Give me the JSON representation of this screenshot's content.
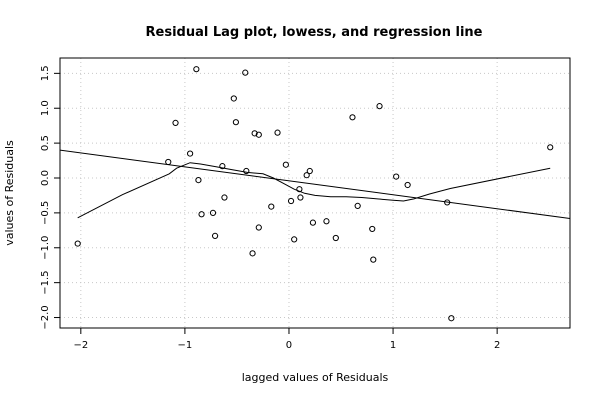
{
  "chart_data": {
    "type": "scatter",
    "title": "Residual Lag plot, lowess, and regression line",
    "xlabel": "lagged values of Residuals",
    "ylabel": "values of Residuals",
    "xlim": [
      -2.2,
      2.7
    ],
    "ylim": [
      -2.15,
      1.72
    ],
    "grid": true,
    "x_ticks": [
      -2,
      -1,
      0,
      1,
      2
    ],
    "x_tick_labels": [
      "−2",
      "−1",
      "0",
      "1",
      "2"
    ],
    "y_ticks": [
      -2.0,
      -1.5,
      -1.0,
      -0.5,
      0.0,
      0.5,
      1.0,
      1.5
    ],
    "y_tick_labels": [
      "−2.0",
      "−1.5",
      "−1.0",
      "−0.5",
      "0.0",
      "0.5",
      "1.0",
      "1.5"
    ],
    "series": [
      {
        "type": "scatter",
        "points": [
          [
            -2.03,
            -0.94
          ],
          [
            -1.16,
            0.23
          ],
          [
            -1.09,
            0.79
          ],
          [
            -0.95,
            0.35
          ],
          [
            -0.89,
            1.56
          ],
          [
            -0.87,
            -0.03
          ],
          [
            -0.84,
            -0.52
          ],
          [
            -0.73,
            -0.5
          ],
          [
            -0.71,
            -0.83
          ],
          [
            -0.64,
            0.17
          ],
          [
            -0.62,
            -0.28
          ],
          [
            -0.53,
            1.14
          ],
          [
            -0.51,
            0.8
          ],
          [
            -0.42,
            1.51
          ],
          [
            -0.41,
            0.1
          ],
          [
            -0.35,
            -1.08
          ],
          [
            -0.33,
            0.64
          ],
          [
            -0.29,
            0.62
          ],
          [
            -0.29,
            -0.71
          ],
          [
            -0.17,
            -0.41
          ],
          [
            -0.11,
            0.65
          ],
          [
            -0.03,
            0.19
          ],
          [
            0.02,
            -0.33
          ],
          [
            0.05,
            -0.88
          ],
          [
            0.1,
            -0.16
          ],
          [
            0.11,
            -0.28
          ],
          [
            0.17,
            0.04
          ],
          [
            0.2,
            0.1
          ],
          [
            0.23,
            -0.64
          ],
          [
            0.36,
            -0.62
          ],
          [
            0.45,
            -0.86
          ],
          [
            0.61,
            0.87
          ],
          [
            0.66,
            -0.4
          ],
          [
            0.8,
            -0.73
          ],
          [
            0.81,
            -1.17
          ],
          [
            0.87,
            1.03
          ],
          [
            1.03,
            0.02
          ],
          [
            1.14,
            -0.1
          ],
          [
            1.52,
            -0.35
          ],
          [
            1.56,
            -2.01
          ],
          [
            2.51,
            0.44
          ]
        ]
      },
      {
        "type": "line",
        "points": [
          [
            -2.03,
            -0.57
          ],
          [
            -1.6,
            -0.24
          ],
          [
            -1.15,
            0.06
          ],
          [
            -1.08,
            0.14
          ],
          [
            -0.95,
            0.22
          ],
          [
            -0.85,
            0.2
          ],
          [
            -0.7,
            0.16
          ],
          [
            -0.55,
            0.12
          ],
          [
            -0.4,
            0.08
          ],
          [
            -0.25,
            0.06
          ],
          [
            -0.15,
            0.0
          ],
          [
            -0.05,
            -0.08
          ],
          [
            0.05,
            -0.16
          ],
          [
            0.15,
            -0.22
          ],
          [
            0.25,
            -0.25
          ],
          [
            0.4,
            -0.27
          ],
          [
            0.55,
            -0.27
          ],
          [
            0.7,
            -0.28
          ],
          [
            0.85,
            -0.3
          ],
          [
            1.0,
            -0.32
          ],
          [
            1.1,
            -0.33
          ],
          [
            1.2,
            -0.3
          ],
          [
            1.35,
            -0.23
          ],
          [
            1.55,
            -0.15
          ],
          [
            2.51,
            0.14
          ]
        ]
      },
      {
        "type": "line",
        "points": [
          [
            -2.2,
            0.4
          ],
          [
            2.7,
            -0.58
          ]
        ]
      }
    ]
  }
}
